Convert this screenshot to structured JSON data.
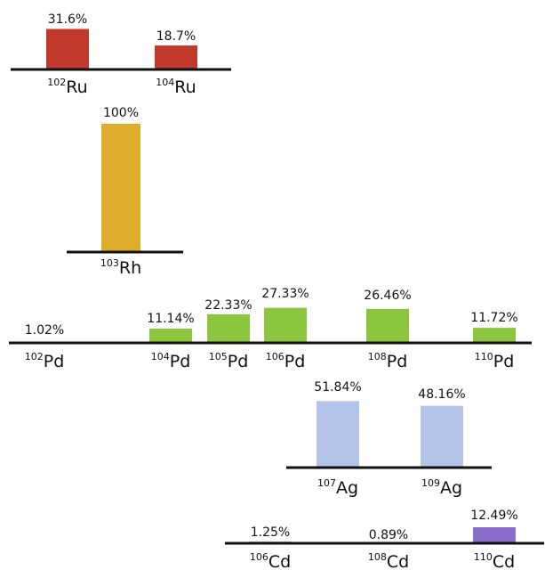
{
  "chart_data": [
    {
      "type": "bar",
      "element": "Ru",
      "color": "#c0392b",
      "x": [
        102,
        104
      ],
      "values": [
        31.6,
        18.7
      ],
      "value_labels": [
        "31.6%",
        "18.7%"
      ],
      "mass_labels": [
        "102",
        "104"
      ],
      "symbol": "Ru"
    },
    {
      "type": "bar",
      "element": "Rh",
      "color": "#e0ac2b",
      "x": [
        103
      ],
      "values": [
        100
      ],
      "value_labels": [
        "100%"
      ],
      "mass_labels": [
        "103"
      ],
      "symbol": "Rh"
    },
    {
      "type": "bar",
      "element": "Pd",
      "color": "#8cc63f",
      "x": [
        102,
        104,
        105,
        106,
        108,
        110
      ],
      "values": [
        1.02,
        11.14,
        22.33,
        27.33,
        26.46,
        11.72
      ],
      "value_labels": [
        "1.02%",
        "11.14%",
        "22.33%",
        "27.33%",
        "26.46%",
        "11.72%"
      ],
      "mass_labels": [
        "102",
        "104",
        "105",
        "106",
        "108",
        "110"
      ],
      "symbol": "Pd"
    },
    {
      "type": "bar",
      "element": "Ag",
      "color": "#b4c4e8",
      "x": [
        107,
        109
      ],
      "values": [
        51.84,
        48.16
      ],
      "value_labels": [
        "51.84%",
        "48.16%"
      ],
      "mass_labels": [
        "107",
        "109"
      ],
      "symbol": "Ag"
    },
    {
      "type": "bar",
      "element": "Cd",
      "color": "#8a6cc9",
      "x": [
        106,
        108,
        110
      ],
      "values": [
        1.25,
        0.89,
        12.49
      ],
      "value_labels": [
        "1.25%",
        "0.89%",
        "12.49%"
      ],
      "mass_labels": [
        "106",
        "108",
        "110"
      ],
      "symbol": "Cd"
    }
  ]
}
